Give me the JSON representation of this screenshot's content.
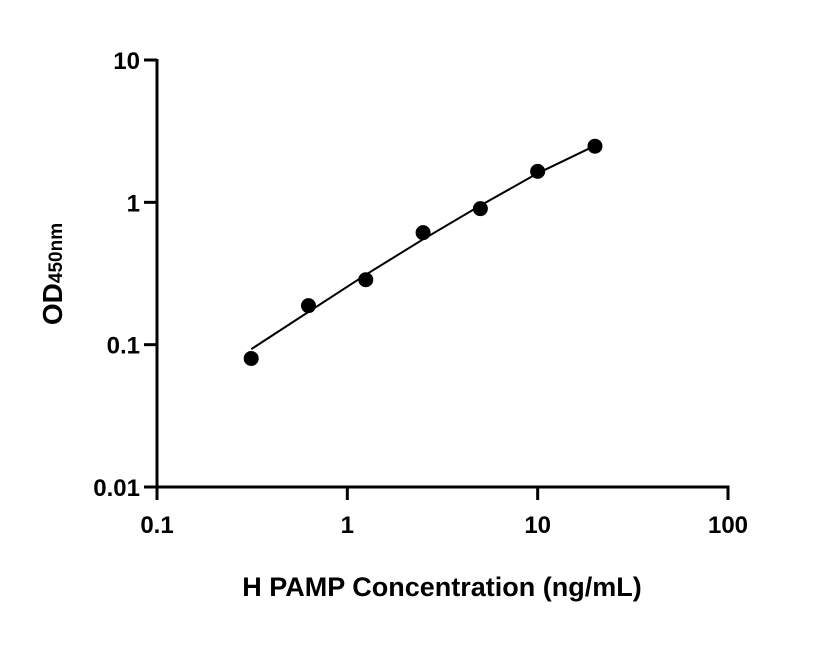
{
  "chart_data": {
    "type": "scatter",
    "title": "",
    "xlabel": "H PAMP Concentration (ng/mL)",
    "ylabel_main": "OD",
    "ylabel_sub": "450nm",
    "x_scale": "log",
    "y_scale": "log",
    "xlim": [
      0.1,
      100
    ],
    "ylim": [
      0.01,
      10
    ],
    "x_ticks": [
      0.1,
      1,
      10,
      100
    ],
    "x_tick_labels": [
      "0.1",
      "1",
      "10",
      "100"
    ],
    "y_ticks": [
      0.01,
      0.1,
      1,
      10
    ],
    "y_tick_labels": [
      "0.01",
      "0.1",
      "1",
      "10"
    ],
    "grid": false,
    "color": "#000000",
    "points": {
      "x": [
        0.3125,
        0.625,
        1.25,
        2.5,
        5,
        10,
        20
      ],
      "y": [
        0.08,
        0.188,
        0.286,
        0.612,
        0.903,
        1.65,
        2.48
      ]
    },
    "fit_curve": {
      "x": [
        0.3125,
        0.625,
        1.25,
        2.5,
        5,
        10,
        20
      ],
      "y": [
        0.093,
        0.17,
        0.31,
        0.55,
        0.95,
        1.6,
        2.5
      ]
    }
  }
}
